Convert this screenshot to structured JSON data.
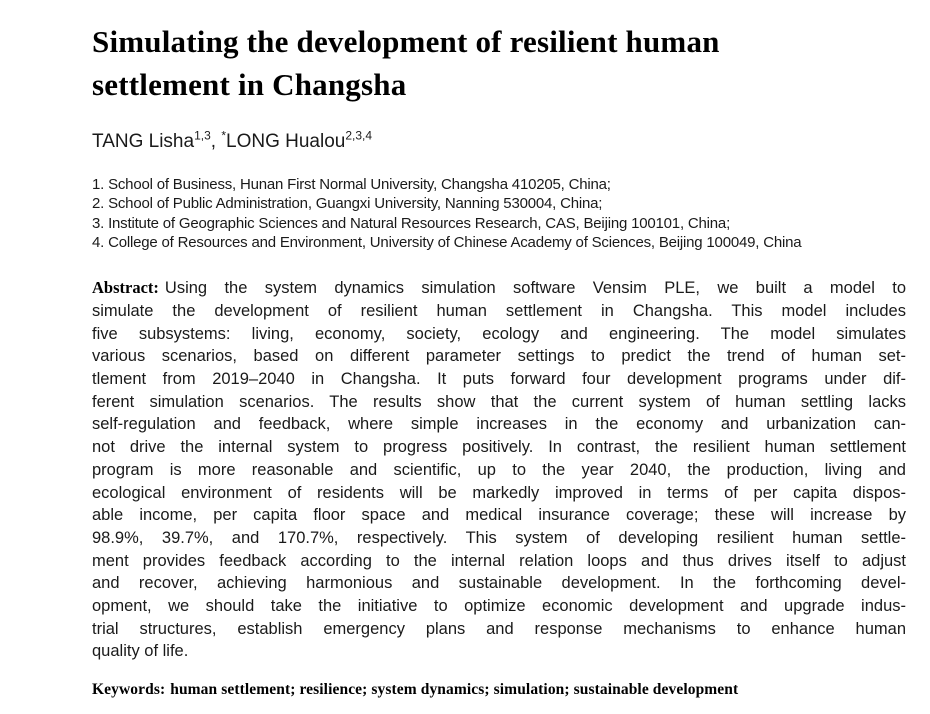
{
  "paper": {
    "title_line1": "Simulating the development of resilient human",
    "title_line2": "settlement in Changsha",
    "authors": [
      {
        "text": "TANG Lisha"
      },
      {
        "sup": "1,3"
      },
      {
        "text": ", "
      },
      {
        "sup": "*"
      },
      {
        "text": "LONG Hualou"
      },
      {
        "sup": "2,3,4"
      }
    ],
    "affiliations": [
      "1. School of Business, Hunan First Normal University, Changsha 410205, China;",
      "2. School of Public Administration, Guangxi University, Nanning 530004, China;",
      "3. Institute of Geographic Sciences and Natural Resources Research, CAS, Beijing 100101, China;",
      "4. College of Resources and Environment, University of Chinese Academy of Sciences, Beijing 100049, China"
    ],
    "abstract": {
      "label": "Abstract:",
      "lines": [
        "Using the system dynamics simulation software Vensim PLE, we built a model to",
        "simulate the development of resilient human settlement in Changsha. This model includes",
        "five subsystems: living, economy, society, ecology and engineering. The model simulates",
        "various scenarios, based on different parameter settings to predict the trend of human set-",
        "tlement from 2019–2040 in Changsha. It puts forward four development programs under dif-",
        "ferent simulation scenarios. The results show that the current system of human settling lacks",
        "self-regulation and feedback, where simple increases in the economy and urbanization can-",
        "not drive the internal system to progress positively. In contrast, the resilient human settlement",
        "program is more reasonable and scientific, up to the year 2040, the production, living and",
        "ecological environment of residents will be markedly improved in terms of per capita dispos-",
        "able income, per capita floor space and medical insurance coverage; these will increase by",
        "98.9%, 39.7%, and 170.7%, respectively. This system of developing resilient human settle-",
        "ment provides feedback according to the internal relation loops and thus drives itself to adjust",
        "and recover, achieving harmonious and sustainable development. In the forthcoming devel-",
        "opment, we should take the initiative to optimize economic development and upgrade indus-",
        "trial structures, establish emergency plans and response mechanisms to enhance human",
        "quality of life."
      ]
    },
    "keywords": {
      "label": "Keywords:",
      "text": "human settlement; resilience; system dynamics; simulation; sustainable development"
    },
    "colors": {
      "text": "#1a1a1a",
      "title": "#000000",
      "background": "#ffffff"
    }
  }
}
